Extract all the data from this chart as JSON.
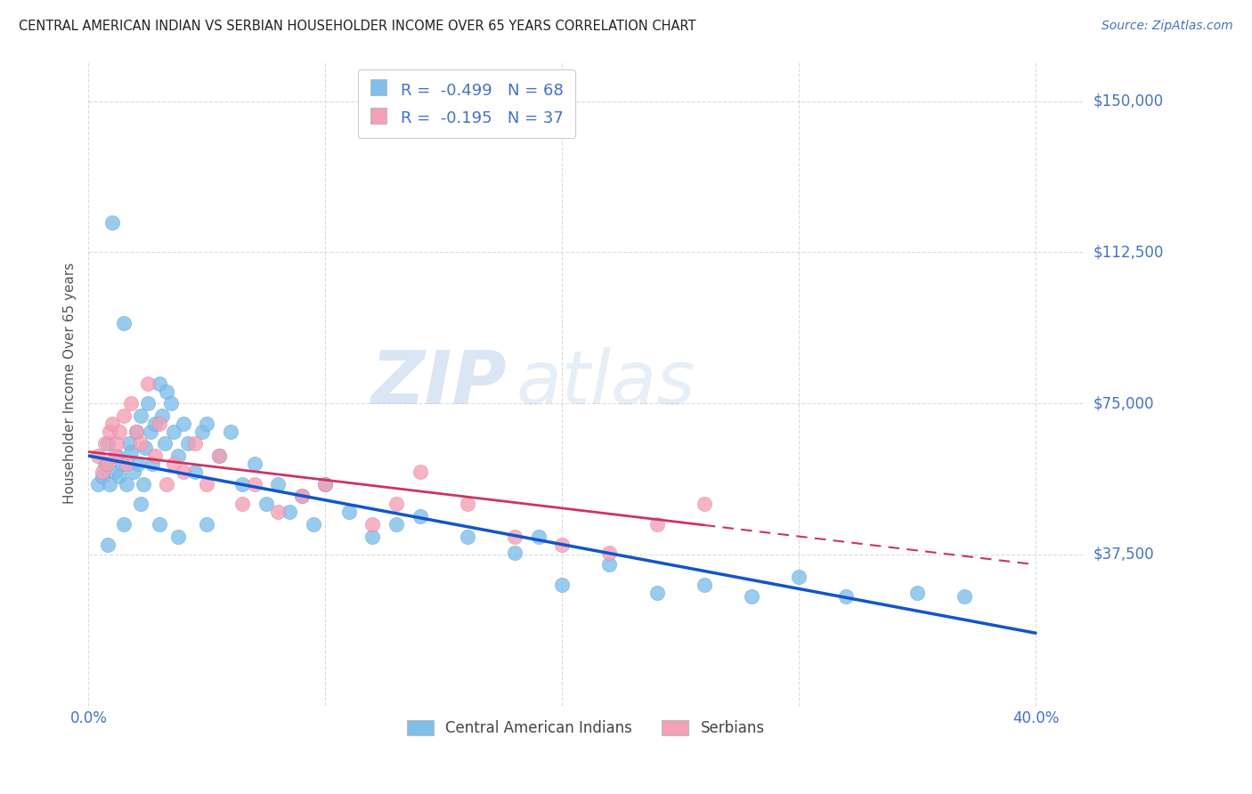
{
  "title": "CENTRAL AMERICAN INDIAN VS SERBIAN HOUSEHOLDER INCOME OVER 65 YEARS CORRELATION CHART",
  "source": "Source: ZipAtlas.com",
  "ylabel": "Householder Income Over 65 years",
  "yticks": [
    0,
    37500,
    75000,
    112500,
    150000
  ],
  "ytick_labels": [
    "",
    "$37,500",
    "$75,000",
    "$112,500",
    "$150,000"
  ],
  "xlim": [
    0.0,
    0.42
  ],
  "ylim": [
    0,
    160000
  ],
  "blue_color": "#7fbfea",
  "pink_color": "#f4a0b5",
  "trendline_blue": "#1155cc",
  "trendline_pink": "#cc3366",
  "legend_R_blue": "-0.499",
  "legend_N_blue": "68",
  "legend_R_pink": "-0.195",
  "legend_N_pink": "37",
  "legend_label_blue": "Central American Indians",
  "legend_label_pink": "Serbians",
  "watermark_zip": "ZIP",
  "watermark_atlas": "atlas",
  "grid_color": "#cccccc",
  "bg_color": "#ffffff",
  "title_color": "#222222",
  "axis_color": "#4472c4",
  "blue_scatter_x": [
    0.004,
    0.006,
    0.007,
    0.008,
    0.009,
    0.01,
    0.011,
    0.012,
    0.013,
    0.014,
    0.015,
    0.016,
    0.017,
    0.018,
    0.019,
    0.02,
    0.021,
    0.022,
    0.023,
    0.024,
    0.025,
    0.026,
    0.027,
    0.028,
    0.03,
    0.031,
    0.032,
    0.033,
    0.035,
    0.036,
    0.038,
    0.04,
    0.042,
    0.045,
    0.048,
    0.05,
    0.055,
    0.06,
    0.065,
    0.07,
    0.075,
    0.08,
    0.085,
    0.09,
    0.095,
    0.1,
    0.11,
    0.12,
    0.13,
    0.14,
    0.16,
    0.18,
    0.19,
    0.2,
    0.22,
    0.24,
    0.26,
    0.28,
    0.3,
    0.32,
    0.35,
    0.37,
    0.008,
    0.015,
    0.022,
    0.03,
    0.038,
    0.05
  ],
  "blue_scatter_y": [
    55000,
    57000,
    60000,
    65000,
    55000,
    120000,
    58000,
    62000,
    57000,
    60000,
    95000,
    55000,
    65000,
    63000,
    58000,
    68000,
    60000,
    72000,
    55000,
    64000,
    75000,
    68000,
    60000,
    70000,
    80000,
    72000,
    65000,
    78000,
    75000,
    68000,
    62000,
    70000,
    65000,
    58000,
    68000,
    70000,
    62000,
    68000,
    55000,
    60000,
    50000,
    55000,
    48000,
    52000,
    45000,
    55000,
    48000,
    42000,
    45000,
    47000,
    42000,
    38000,
    42000,
    30000,
    35000,
    28000,
    30000,
    27000,
    32000,
    27000,
    28000,
    27000,
    40000,
    45000,
    50000,
    45000,
    42000,
    45000
  ],
  "pink_scatter_x": [
    0.004,
    0.006,
    0.007,
    0.008,
    0.009,
    0.01,
    0.011,
    0.012,
    0.013,
    0.015,
    0.016,
    0.018,
    0.02,
    0.022,
    0.025,
    0.028,
    0.03,
    0.033,
    0.036,
    0.04,
    0.045,
    0.05,
    0.055,
    0.065,
    0.07,
    0.08,
    0.09,
    0.1,
    0.12,
    0.13,
    0.14,
    0.16,
    0.18,
    0.2,
    0.22,
    0.24,
    0.26
  ],
  "pink_scatter_y": [
    62000,
    58000,
    65000,
    60000,
    68000,
    70000,
    62000,
    65000,
    68000,
    72000,
    60000,
    75000,
    68000,
    65000,
    80000,
    62000,
    70000,
    55000,
    60000,
    58000,
    65000,
    55000,
    62000,
    50000,
    55000,
    48000,
    52000,
    55000,
    45000,
    50000,
    58000,
    50000,
    42000,
    40000,
    38000,
    45000,
    50000
  ],
  "xtick_positions": [
    0.0,
    0.1,
    0.2,
    0.3,
    0.4
  ],
  "xtick_labels": [
    "0.0%",
    "",
    "",
    "",
    "40.0%"
  ]
}
